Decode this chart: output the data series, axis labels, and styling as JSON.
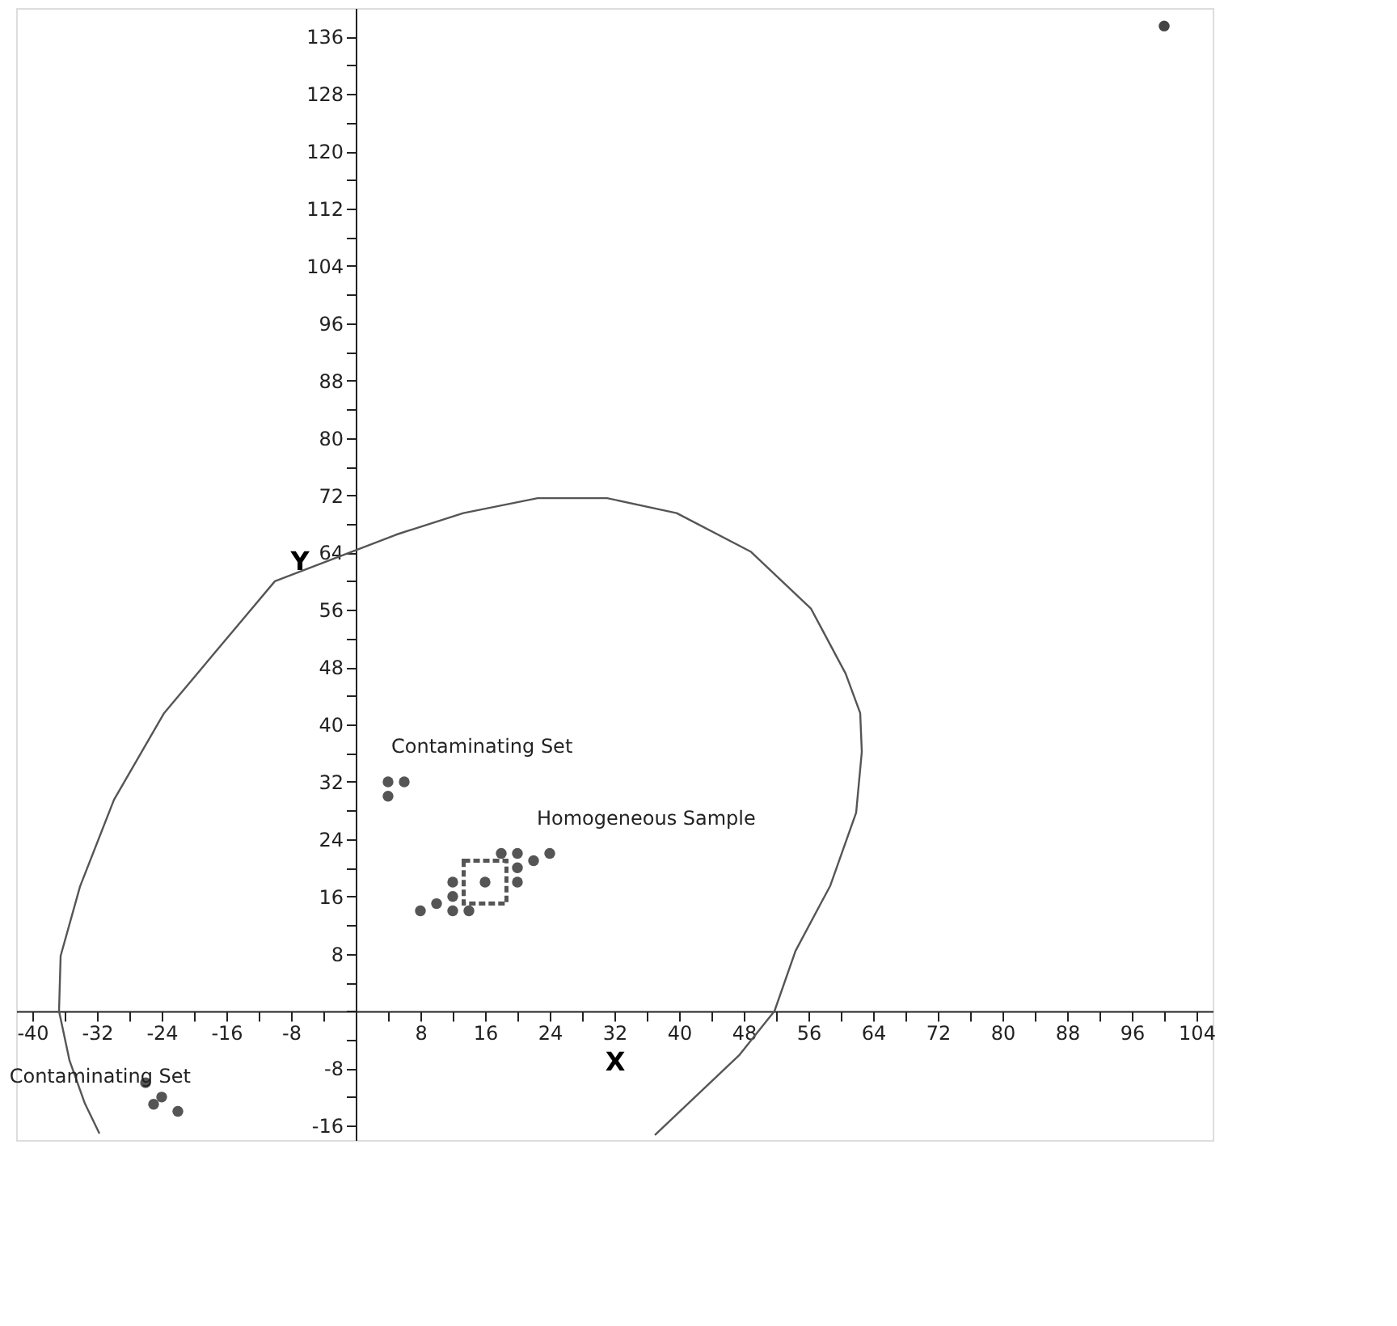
{
  "chart_data": {
    "type": "scatter",
    "xlabel": "X",
    "ylabel": "Y",
    "xlim": [
      -42,
      106
    ],
    "ylim": [
      -18,
      140
    ],
    "xticks": [
      -40,
      {
        "value": -36,
        "label": null
      },
      -32,
      {
        "value": -28,
        "label": null
      },
      -24,
      {
        "value": -20,
        "label": null
      },
      -16,
      {
        "value": -12,
        "label": null
      },
      -8,
      {
        "value": -4,
        "label": null
      },
      {
        "value": 0,
        "label": null
      },
      {
        "value": 4,
        "label": null
      },
      8,
      {
        "value": 12,
        "label": null
      },
      16,
      {
        "value": 20,
        "label": null
      },
      24,
      {
        "value": 28,
        "label": null
      },
      32,
      {
        "value": 36,
        "label": null
      },
      40,
      {
        "value": 44,
        "label": null
      },
      48,
      {
        "value": 52,
        "label": null
      },
      56,
      {
        "value": 60,
        "label": null
      },
      64,
      {
        "value": 68,
        "label": null
      },
      72,
      {
        "value": 76,
        "label": null
      },
      80,
      {
        "value": 84,
        "label": null
      },
      88,
      {
        "value": 92,
        "label": null
      },
      96,
      {
        "value": 100,
        "label": null
      },
      104
    ],
    "yticks": [
      -16,
      {
        "value": -12,
        "label": null
      },
      -8,
      {
        "value": -4,
        "label": null
      },
      {
        "value": 0,
        "label": null
      },
      {
        "value": 4,
        "label": null
      },
      8,
      {
        "value": 12,
        "label": null
      },
      16,
      {
        "value": 20,
        "label": null
      },
      24,
      {
        "value": 28,
        "label": null
      },
      32,
      {
        "value": 36,
        "label": null
      },
      40,
      {
        "value": 44,
        "label": null
      },
      48,
      {
        "value": 52,
        "label": null
      },
      56,
      {
        "value": 60,
        "label": null
      },
      64,
      {
        "value": 68,
        "label": null
      },
      72,
      {
        "value": 76,
        "label": null
      },
      80,
      {
        "value": 84,
        "label": null
      },
      88,
      {
        "value": 92,
        "label": null
      },
      96,
      {
        "value": 100,
        "label": null
      },
      104,
      {
        "value": 108,
        "label": null
      },
      112,
      {
        "value": 116,
        "label": null
      },
      120,
      {
        "value": 124,
        "label": null
      },
      128,
      {
        "value": 132,
        "label": null
      },
      136
    ],
    "grid": false,
    "marker": "circle",
    "series": [
      {
        "color": "#555555",
        "x": [
          24,
          22,
          20,
          20,
          20,
          18,
          16,
          12,
          12,
          12,
          14,
          10,
          8
        ],
        "values": [
          22,
          21,
          22,
          20,
          18,
          22,
          18,
          18,
          16,
          14,
          14,
          15,
          14
        ]
      },
      {
        "color": "#555555",
        "marker": "square",
        "x": [
          16
        ],
        "values": [
          18
        ]
      },
      {
        "color": "#555555",
        "x": [
          6,
          4,
          4
        ],
        "values": [
          32,
          32,
          30
        ]
      },
      {
        "color": "#555555",
        "x": [
          -26,
          -24,
          -25,
          -22
        ],
        "values": [
          -10,
          -12,
          -13,
          -14
        ]
      },
      {
        "color": "#444444",
        "x": [
          100
        ],
        "values": [
          137.5
        ]
      },
      {
        "type": "line",
        "color": "#555555",
        "marker": "none",
        "line_style": "solid",
        "x": [
          37,
          47.4,
          51.8,
          54.4,
          58.7,
          61.9,
          62.6,
          62.4,
          60.6,
          56.3,
          48.9,
          39.7,
          31.1,
          22.5,
          13.3,
          5,
          -10,
          -23.7,
          -29.9,
          -34.1,
          -36.5,
          -36.7,
          -35.4,
          -33.5,
          -31.7
        ],
        "values": [
          -17.3,
          -6.2,
          0,
          8.4,
          17.5,
          27.7,
          36.2,
          41.6,
          47.1,
          56.2,
          64.1,
          69.5,
          71.6,
          71.6,
          69.5,
          66.5,
          60,
          41.6,
          29.5,
          17.4,
          7.7,
          0,
          -6.9,
          -12.9,
          -17.1
        ]
      }
    ],
    "annotations": [
      {
        "text": "Homogeneous Sample",
        "x": 24,
        "y": 22
      },
      {
        "text": "Contaminating Set",
        "x": 6,
        "y": 32
      },
      {
        "text": "Contaminating Set",
        "x": -22,
        "y": -14
      }
    ]
  }
}
